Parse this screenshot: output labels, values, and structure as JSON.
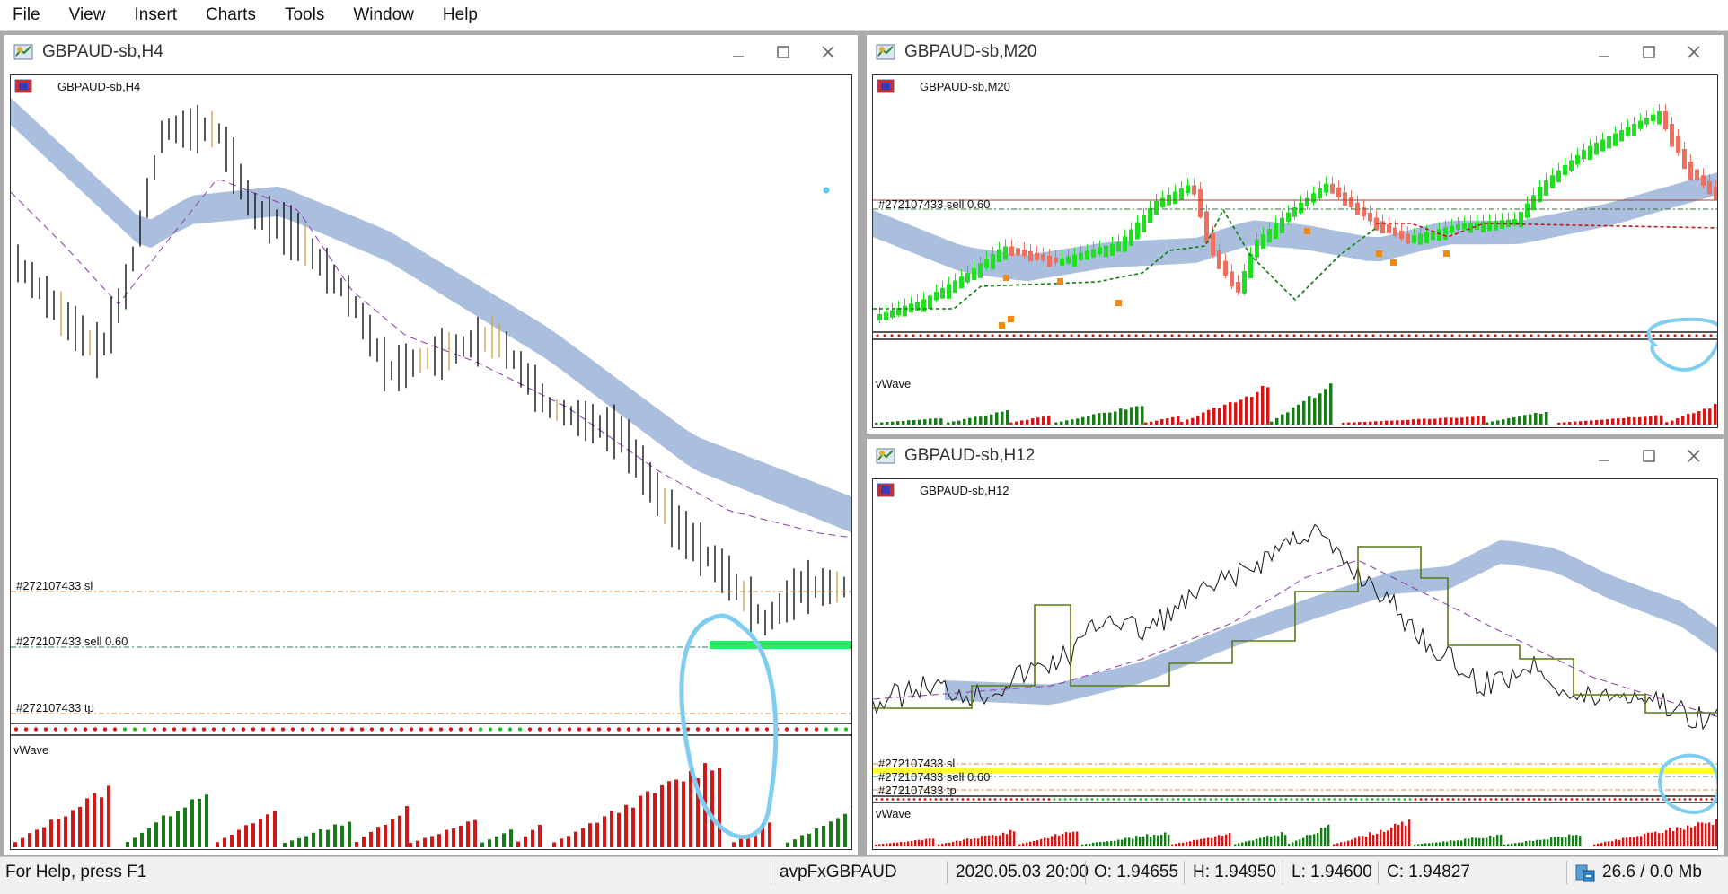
{
  "menu": [
    "File",
    "View",
    "Insert",
    "Charts",
    "Tools",
    "Window",
    "Help"
  ],
  "windows": {
    "h4": {
      "title": "GBPAUD-sb,H4",
      "symbol_label": "GBPAUD-sb,H4",
      "sl_label": "#272107433 sl",
      "sell_label": "#272107433 sell 0.60",
      "tp_label": "#272107433 tp",
      "indicator_label": "vWave"
    },
    "m20": {
      "title": "GBPAUD-sb,M20",
      "symbol_label": "GBPAUD-sb,M20",
      "sell_label": "#272107433 sell 0.60",
      "indicator_label": "vWave"
    },
    "h12": {
      "title": "GBPAUD-sb,H12",
      "symbol_label": "GBPAUD-sb,H12",
      "sl_label": "#272107433 sl",
      "sell_label": "#272107433 sell 0.60",
      "tp_label": "#272107433 tp",
      "indicator_label": "vWave"
    }
  },
  "window_controls": [
    "minimize-icon",
    "maximize-icon",
    "close-icon"
  ],
  "colors": {
    "bull": "#1ee01e",
    "bear": "#f07060",
    "histogram_up": "#1a7a1a",
    "histogram_down": "#d01818",
    "band": "#aabfde",
    "highlight_circle": "#7fcdf0",
    "sell_zone": "#22ee66",
    "h12_sell_zone": "#ffff33"
  },
  "status": {
    "help": "For Help, press F1",
    "profile": "avpFxGBPAUD",
    "datetime": "2020.05.03 20:00",
    "open": "O: 1.94655",
    "high": "H: 1.94950",
    "low": "L: 1.94600",
    "close": "C: 1.94827",
    "traffic": "26.6 / 0.0 Mb"
  }
}
